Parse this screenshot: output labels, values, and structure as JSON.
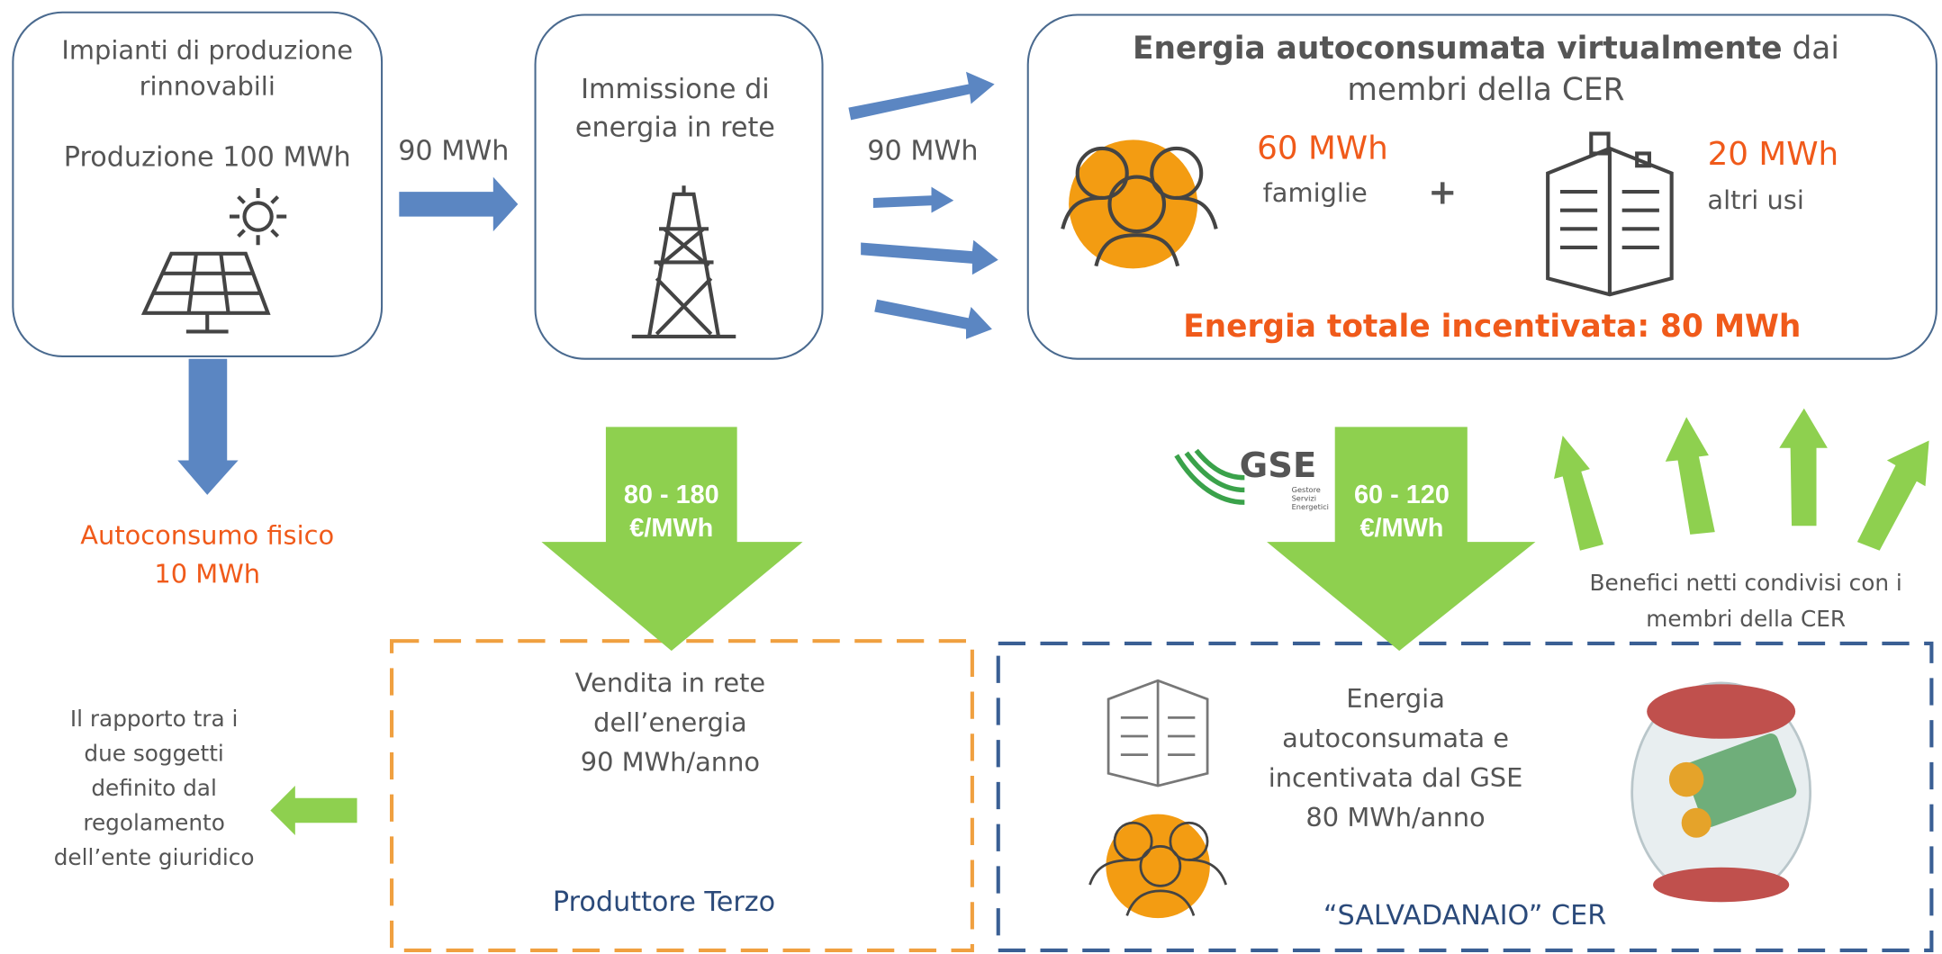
{
  "production_box": {
    "title_lines": [
      "Impianti di produzione",
      "rinnovabili"
    ],
    "production": "Produzione 100 MWh"
  },
  "arrow_label_1": "90 MWh",
  "grid_box": {
    "title_lines": [
      "Immissione di",
      "energia in rete"
    ]
  },
  "arrow_label_2": "90 MWh",
  "virtual_box": {
    "title_bold": "Energia autoconsumata virtualmente",
    "title_tail": "dai",
    "title_line2": "membri della CER",
    "families_value": "60 MWh",
    "families_label": "famiglie",
    "plus": "+",
    "other_value": "20 MWh",
    "other_label": "altri usi",
    "total": "Energia totale incentivata: 80 MWh"
  },
  "physical": {
    "lines": [
      "Autoconsumo fisico",
      "10 MWh"
    ]
  },
  "price_1": {
    "lines": [
      "80 - 180",
      "€/MWh"
    ]
  },
  "gse": {
    "name": "GSE",
    "subtitle_lines": [
      "Gestore",
      "Servizi",
      "Energetici"
    ]
  },
  "price_2": {
    "lines": [
      "60 - 120",
      "€/MWh"
    ]
  },
  "benefits": {
    "lines": [
      "Benefici netti condivisi con i",
      "membri della CER"
    ]
  },
  "seller_box": {
    "lines": [
      "Vendita in rete",
      "dell’energia",
      "90 MWh/anno"
    ],
    "label": "Produttore Terzo"
  },
  "piggy_box": {
    "lines": [
      "Energia",
      "autoconsumata  e",
      "incentivata dal GSE",
      "80 MWh/anno"
    ],
    "label": "“SALVADANAIO” CER"
  },
  "note": {
    "lines": [
      "Il rapporto tra i",
      "due soggetti",
      "definito dal",
      "regolamento",
      "dell’ente giuridico"
    ]
  }
}
